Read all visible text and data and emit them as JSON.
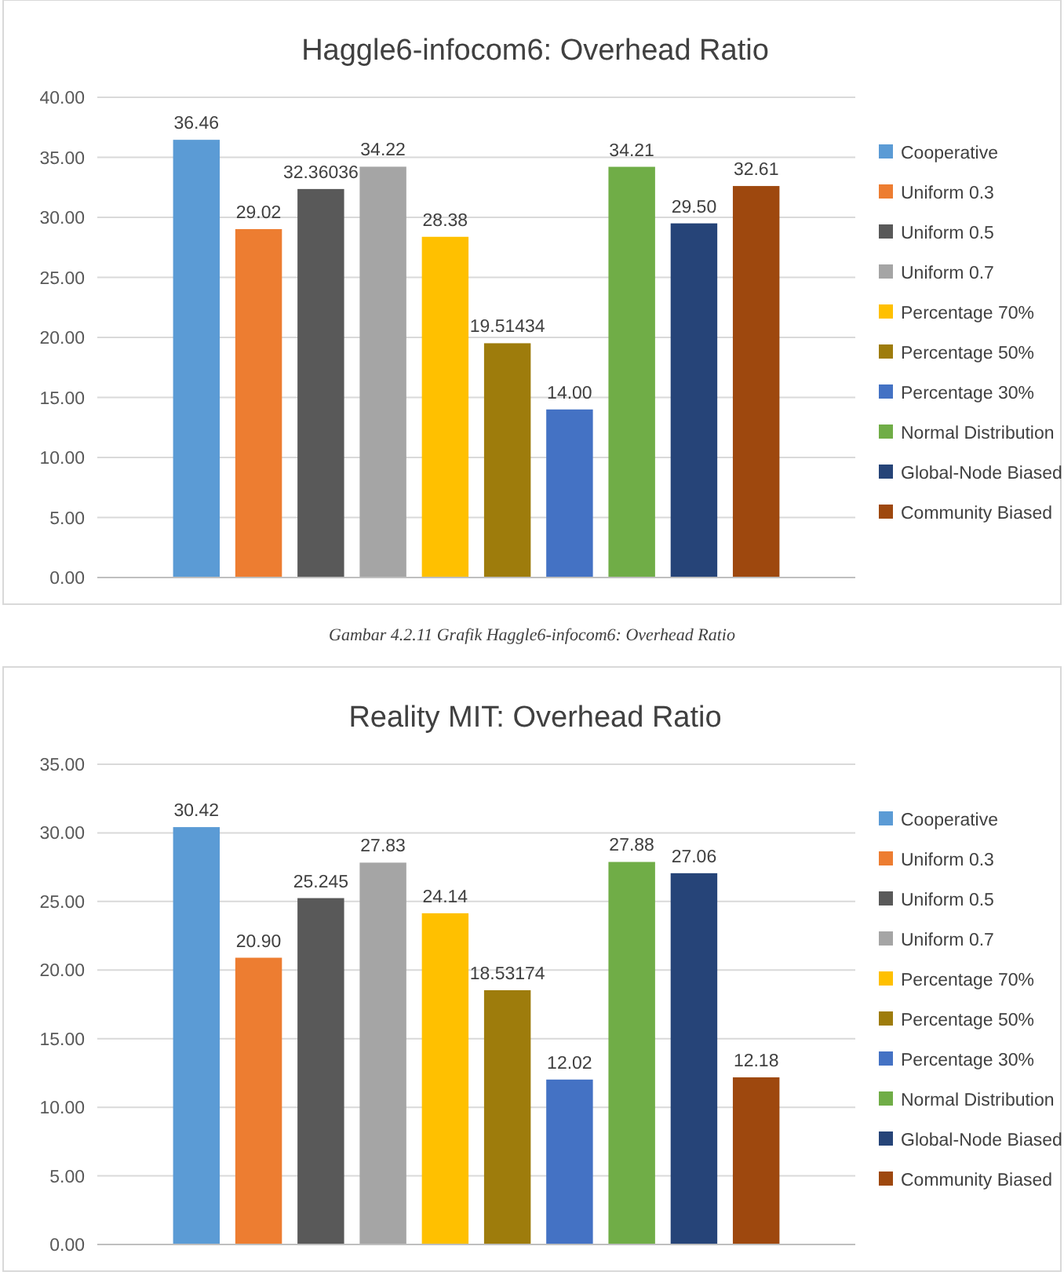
{
  "chart_data": [
    {
      "type": "bar",
      "title": "Haggle6-infocom6: Overhead Ratio",
      "annotations": [
        "Gambar 4.2.11 Grafik Haggle6-infocom6: Overhead Ratio"
      ],
      "categories": [
        null
      ],
      "ylim": [
        0,
        40
      ],
      "yticks": [
        {
          "value": 0,
          "label": "0.00"
        },
        {
          "value": 5,
          "label": "5.00"
        },
        {
          "value": 10,
          "label": "10.00"
        },
        {
          "value": 15,
          "label": "15.00"
        },
        {
          "value": 20,
          "label": "20.00"
        },
        {
          "value": 25,
          "label": "25.00"
        },
        {
          "value": 30,
          "label": "30.00"
        },
        {
          "value": 35,
          "label": "35.00"
        },
        {
          "value": 40,
          "label": "40.00"
        }
      ],
      "grid": "y",
      "legend": "right",
      "series": [
        {
          "name": "Cooperative",
          "color": "#5b9bd5",
          "values": [
            36.46
          ],
          "value_labels": [
            "36.46"
          ]
        },
        {
          "name": "Uniform 0.3",
          "color": "#ed7d31",
          "values": [
            29.02
          ],
          "value_labels": [
            "29.02"
          ]
        },
        {
          "name": "Uniform 0.5",
          "color": "#595959",
          "values": [
            32.36036
          ],
          "value_labels": [
            "32.36036"
          ]
        },
        {
          "name": "Uniform 0.7",
          "color": "#a5a5a5",
          "values": [
            34.22
          ],
          "value_labels": [
            "34.22"
          ]
        },
        {
          "name": "Percentage 70%",
          "color": "#ffc000",
          "values": [
            28.38
          ],
          "value_labels": [
            "28.38"
          ]
        },
        {
          "name": "Percentage 50%",
          "color": "#9e7c0c",
          "values": [
            19.51434
          ],
          "value_labels": [
            "19.51434"
          ]
        },
        {
          "name": "Percentage 30%",
          "color": "#4472c4",
          "values": [
            14.0
          ],
          "value_labels": [
            "14.00"
          ]
        },
        {
          "name": "Normal Distribution",
          "color": "#70ad47",
          "values": [
            34.21
          ],
          "value_labels": [
            "34.21"
          ]
        },
        {
          "name": "Global-Node Biased",
          "color": "#264478",
          "values": [
            29.5
          ],
          "value_labels": [
            "29.50"
          ]
        },
        {
          "name": "Community Biased",
          "color": "#9e480e",
          "values": [
            32.61
          ],
          "value_labels": [
            "32.61"
          ]
        }
      ]
    },
    {
      "type": "bar",
      "title": "Reality MIT: Overhead Ratio",
      "categories": [
        null
      ],
      "ylim": [
        0,
        35
      ],
      "yticks": [
        {
          "value": 0,
          "label": "0.00"
        },
        {
          "value": 5,
          "label": "5.00"
        },
        {
          "value": 10,
          "label": "10.00"
        },
        {
          "value": 15,
          "label": "15.00"
        },
        {
          "value": 20,
          "label": "20.00"
        },
        {
          "value": 25,
          "label": "25.00"
        },
        {
          "value": 30,
          "label": "30.00"
        },
        {
          "value": 35,
          "label": "35.00"
        }
      ],
      "grid": "y",
      "legend": "right",
      "series": [
        {
          "name": "Cooperative",
          "color": "#5b9bd5",
          "values": [
            30.42
          ],
          "value_labels": [
            "30.42"
          ]
        },
        {
          "name": "Uniform 0.3",
          "color": "#ed7d31",
          "values": [
            20.9
          ],
          "value_labels": [
            "20.90"
          ]
        },
        {
          "name": "Uniform 0.5",
          "color": "#595959",
          "values": [
            25.245
          ],
          "value_labels": [
            "25.245"
          ]
        },
        {
          "name": "Uniform 0.7",
          "color": "#a5a5a5",
          "values": [
            27.83
          ],
          "value_labels": [
            "27.83"
          ]
        },
        {
          "name": "Percentage 70%",
          "color": "#ffc000",
          "values": [
            24.14
          ],
          "value_labels": [
            "24.14"
          ]
        },
        {
          "name": "Percentage 50%",
          "color": "#9e7c0c",
          "values": [
            18.53174
          ],
          "value_labels": [
            "18.53174"
          ]
        },
        {
          "name": "Percentage 30%",
          "color": "#4472c4",
          "values": [
            12.02
          ],
          "value_labels": [
            "12.02"
          ]
        },
        {
          "name": "Normal Distribution",
          "color": "#70ad47",
          "values": [
            27.88
          ],
          "value_labels": [
            "27.88"
          ]
        },
        {
          "name": "Global-Node Biased",
          "color": "#264478",
          "values": [
            27.06
          ],
          "value_labels": [
            "27.06"
          ]
        },
        {
          "name": "Community Biased",
          "color": "#9e480e",
          "values": [
            12.18
          ],
          "value_labels": [
            "12.18"
          ]
        }
      ]
    }
  ]
}
